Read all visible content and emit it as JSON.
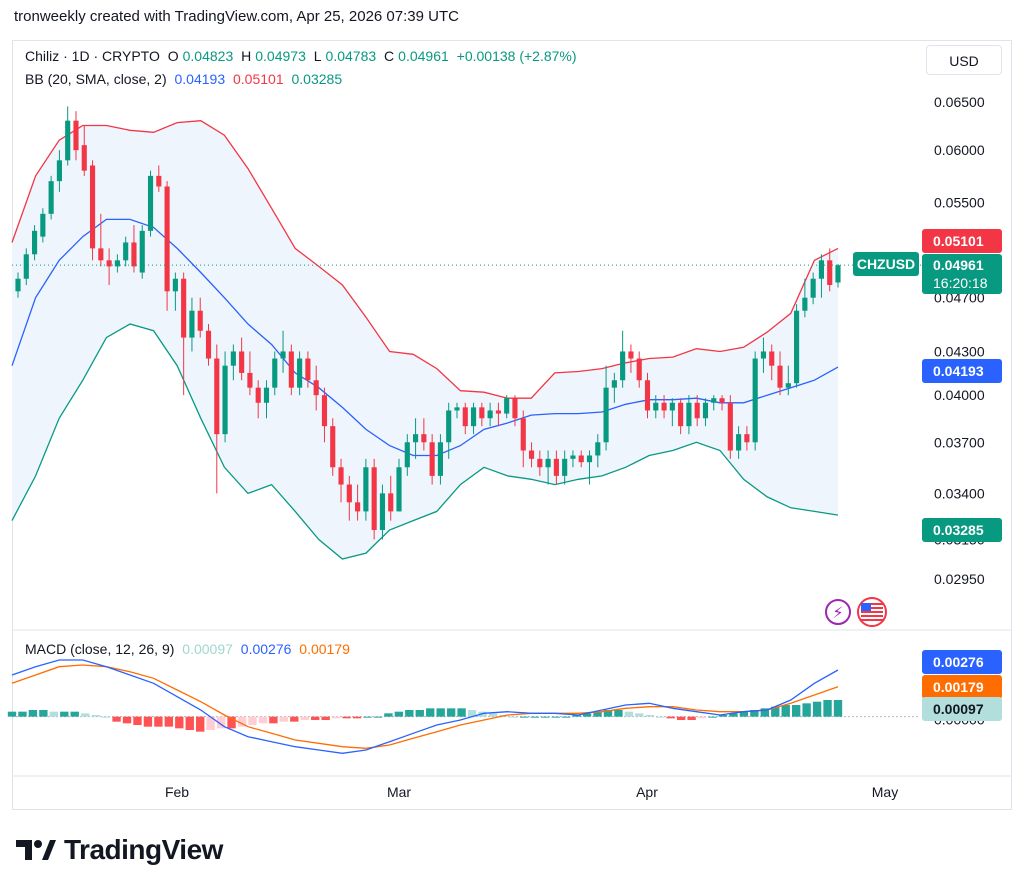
{
  "header": {
    "note": "tronweekly created with TradingView.com, Apr 25, 2026 07:39 UTC"
  },
  "legend": {
    "symbol": "Chiliz · 1D · CRYPTO",
    "o_label": "O",
    "o_value": "0.04823",
    "h_label": "H",
    "h_value": "0.04973",
    "l_label": "L",
    "l_value": "0.04783",
    "c_label": "C",
    "c_value": "0.04961",
    "change": "+0.00138 (+2.87%)"
  },
  "bb_legend": {
    "label": "BB (20, SMA, close, 2)",
    "basis": "0.04193",
    "upper": "0.05101",
    "lower": "0.03285"
  },
  "macd_legend": {
    "label": "MACD (close, 12, 26, 9)",
    "hist": "0.00097",
    "macd": "0.00276",
    "signal": "0.00179"
  },
  "currency_button": "USD",
  "price_ticks": [
    "0.06500",
    "0.06000",
    "0.05500",
    "0.04700",
    "0.04300",
    "0.04000",
    "0.03700",
    "0.03400",
    "0.03150",
    "0.02950"
  ],
  "macd_zero_tick": "0.00000",
  "time_ticks": [
    "Feb",
    "Mar",
    "Apr",
    "May"
  ],
  "badges": {
    "bb_upper": "0.05101",
    "symbol": "CHZUSD",
    "price": "0.04961",
    "countdown": "16:20:18",
    "bb_basis": "0.04193",
    "bb_lower": "0.03285",
    "macd": "0.00276",
    "signal": "0.00179",
    "hist": "0.00097"
  },
  "colors": {
    "up": "#089981",
    "down": "#f23645",
    "bb_basis": "#2962ff",
    "bb_upper": "#f23645",
    "bb_lower": "#089981",
    "bb_fill": "#eef5fc",
    "macd": "#2962ff",
    "signal": "#ff6d00",
    "hist_up_strong": "#26a69a",
    "hist_up_weak": "#b2dfdb",
    "hist_down_strong": "#ff5252",
    "hist_down_weak": "#ffcdd2"
  },
  "logo": {
    "text": "TradingView"
  },
  "chart_data": {
    "type": "candlestick",
    "symbol": "CHZUSD",
    "price_range": [
      0.0285,
      0.0665
    ],
    "x_ticks": [
      "Feb",
      "Mar",
      "Apr",
      "May"
    ],
    "candles": [
      [
        0.0475,
        0.049,
        0.047,
        0.0485
      ],
      [
        0.0485,
        0.051,
        0.048,
        0.0505
      ],
      [
        0.0505,
        0.053,
        0.05,
        0.0525
      ],
      [
        0.052,
        0.0545,
        0.0515,
        0.054
      ],
      [
        0.054,
        0.0575,
        0.0535,
        0.057
      ],
      [
        0.057,
        0.06,
        0.056,
        0.059
      ],
      [
        0.059,
        0.0645,
        0.0585,
        0.063
      ],
      [
        0.063,
        0.064,
        0.059,
        0.06
      ],
      [
        0.0605,
        0.0625,
        0.0575,
        0.058
      ],
      [
        0.0585,
        0.059,
        0.05,
        0.051
      ],
      [
        0.051,
        0.054,
        0.0495,
        0.05
      ],
      [
        0.05,
        0.051,
        0.048,
        0.0495
      ],
      [
        0.0495,
        0.0505,
        0.049,
        0.05
      ],
      [
        0.05,
        0.052,
        0.0495,
        0.0515
      ],
      [
        0.0515,
        0.053,
        0.049,
        0.0495
      ],
      [
        0.049,
        0.053,
        0.0485,
        0.0525
      ],
      [
        0.0525,
        0.058,
        0.052,
        0.0575
      ],
      [
        0.0575,
        0.0585,
        0.056,
        0.0565
      ],
      [
        0.0565,
        0.057,
        0.046,
        0.0475
      ],
      [
        0.0475,
        0.049,
        0.046,
        0.0485
      ],
      [
        0.0485,
        0.049,
        0.04,
        0.044
      ],
      [
        0.044,
        0.047,
        0.043,
        0.046
      ],
      [
        0.046,
        0.047,
        0.044,
        0.0445
      ],
      [
        0.0445,
        0.045,
        0.042,
        0.0425
      ],
      [
        0.0425,
        0.0435,
        0.034,
        0.0375
      ],
      [
        0.0375,
        0.043,
        0.037,
        0.042
      ],
      [
        0.042,
        0.0435,
        0.041,
        0.043
      ],
      [
        0.043,
        0.044,
        0.041,
        0.0415
      ],
      [
        0.0415,
        0.043,
        0.04,
        0.0405
      ],
      [
        0.0405,
        0.041,
        0.0385,
        0.0395
      ],
      [
        0.0395,
        0.041,
        0.0385,
        0.0405
      ],
      [
        0.0405,
        0.043,
        0.04,
        0.0425
      ],
      [
        0.0425,
        0.0445,
        0.0415,
        0.043
      ],
      [
        0.043,
        0.0435,
        0.04,
        0.0405
      ],
      [
        0.0405,
        0.043,
        0.04,
        0.0425
      ],
      [
        0.0425,
        0.043,
        0.0405,
        0.041
      ],
      [
        0.041,
        0.042,
        0.039,
        0.04
      ],
      [
        0.04,
        0.0405,
        0.037,
        0.038
      ],
      [
        0.038,
        0.0385,
        0.035,
        0.0355
      ],
      [
        0.0355,
        0.036,
        0.0335,
        0.0345
      ],
      [
        0.0345,
        0.035,
        0.0325,
        0.0335
      ],
      [
        0.0335,
        0.0345,
        0.0325,
        0.033
      ],
      [
        0.033,
        0.036,
        0.0325,
        0.0355
      ],
      [
        0.0355,
        0.036,
        0.0315,
        0.032
      ],
      [
        0.032,
        0.0345,
        0.0315,
        0.034
      ],
      [
        0.034,
        0.035,
        0.0325,
        0.033
      ],
      [
        0.033,
        0.036,
        0.033,
        0.0355
      ],
      [
        0.0355,
        0.0375,
        0.035,
        0.037
      ],
      [
        0.037,
        0.0385,
        0.036,
        0.0375
      ],
      [
        0.0375,
        0.0385,
        0.0365,
        0.037
      ],
      [
        0.037,
        0.0375,
        0.0345,
        0.035
      ],
      [
        0.035,
        0.0375,
        0.0345,
        0.037
      ],
      [
        0.037,
        0.0395,
        0.036,
        0.039
      ],
      [
        0.039,
        0.0395,
        0.0385,
        0.0392
      ],
      [
        0.0392,
        0.0395,
        0.0375,
        0.038
      ],
      [
        0.038,
        0.0395,
        0.0375,
        0.0392
      ],
      [
        0.0392,
        0.0395,
        0.038,
        0.0385
      ],
      [
        0.0385,
        0.0395,
        0.038,
        0.039
      ],
      [
        0.039,
        0.0395,
        0.038,
        0.0388
      ],
      [
        0.0388,
        0.04,
        0.0385,
        0.0398
      ],
      [
        0.0398,
        0.04,
        0.038,
        0.0385
      ],
      [
        0.0385,
        0.039,
        0.0355,
        0.0365
      ],
      [
        0.0365,
        0.037,
        0.0355,
        0.036
      ],
      [
        0.036,
        0.0365,
        0.035,
        0.0355
      ],
      [
        0.0355,
        0.0365,
        0.0345,
        0.036
      ],
      [
        0.036,
        0.0365,
        0.0345,
        0.035
      ],
      [
        0.035,
        0.0365,
        0.0345,
        0.036
      ],
      [
        0.036,
        0.0365,
        0.0355,
        0.0362
      ],
      [
        0.0362,
        0.0365,
        0.0355,
        0.0358
      ],
      [
        0.0358,
        0.0365,
        0.0345,
        0.0362
      ],
      [
        0.0362,
        0.0375,
        0.0355,
        0.037
      ],
      [
        0.037,
        0.042,
        0.0365,
        0.0405
      ],
      [
        0.0405,
        0.0415,
        0.0395,
        0.041
      ],
      [
        0.041,
        0.0445,
        0.0405,
        0.043
      ],
      [
        0.043,
        0.0435,
        0.0415,
        0.0425
      ],
      [
        0.0425,
        0.043,
        0.0405,
        0.041
      ],
      [
        0.041,
        0.0415,
        0.0385,
        0.039
      ],
      [
        0.039,
        0.04,
        0.0385,
        0.0395
      ],
      [
        0.0395,
        0.04,
        0.0385,
        0.039
      ],
      [
        0.039,
        0.0398,
        0.038,
        0.0395
      ],
      [
        0.0395,
        0.0398,
        0.0375,
        0.038
      ],
      [
        0.038,
        0.04,
        0.0375,
        0.0395
      ],
      [
        0.0395,
        0.04,
        0.038,
        0.0385
      ],
      [
        0.0385,
        0.0398,
        0.038,
        0.0395
      ],
      [
        0.0395,
        0.04,
        0.039,
        0.0398
      ],
      [
        0.0398,
        0.04,
        0.039,
        0.0395
      ],
      [
        0.0395,
        0.04,
        0.036,
        0.0365
      ],
      [
        0.0365,
        0.038,
        0.036,
        0.0375
      ],
      [
        0.0375,
        0.038,
        0.0365,
        0.037
      ],
      [
        0.037,
        0.043,
        0.0365,
        0.0425
      ],
      [
        0.0425,
        0.044,
        0.0415,
        0.043
      ],
      [
        0.043,
        0.0435,
        0.041,
        0.042
      ],
      [
        0.042,
        0.043,
        0.04,
        0.0405
      ],
      [
        0.0405,
        0.042,
        0.04,
        0.0408
      ],
      [
        0.0408,
        0.0465,
        0.0405,
        0.046
      ],
      [
        0.046,
        0.0485,
        0.0455,
        0.047
      ],
      [
        0.047,
        0.049,
        0.0465,
        0.0485
      ],
      [
        0.0485,
        0.0505,
        0.047,
        0.05
      ],
      [
        0.05,
        0.051,
        0.0475,
        0.048
      ],
      [
        0.0482,
        0.0497,
        0.0478,
        0.0496
      ]
    ],
    "bb_upper": [
      0.0515,
      0.0575,
      0.061,
      0.0625,
      0.0625,
      0.062,
      0.0618,
      0.0628,
      0.063,
      0.0615,
      0.0582,
      0.0545,
      0.051,
      0.0495,
      0.048,
      0.0455,
      0.043,
      0.0428,
      0.0418,
      0.0403,
      0.0402,
      0.0398,
      0.0398,
      0.0415,
      0.0416,
      0.0418,
      0.0422,
      0.0425,
      0.0426,
      0.0432,
      0.043,
      0.0433,
      0.0444,
      0.0458,
      0.05,
      0.051
    ],
    "bb_basis": [
      0.042,
      0.047,
      0.05,
      0.052,
      0.0535,
      0.0535,
      0.0528,
      0.051,
      0.049,
      0.047,
      0.045,
      0.0435,
      0.0415,
      0.0405,
      0.0392,
      0.0378,
      0.0368,
      0.0362,
      0.0362,
      0.0368,
      0.0378,
      0.0382,
      0.0387,
      0.0388,
      0.0388,
      0.0389,
      0.0394,
      0.0397,
      0.0397,
      0.0398,
      0.0395,
      0.0395,
      0.04,
      0.0405,
      0.041,
      0.0419
    ],
    "bb_lower": [
      0.0325,
      0.035,
      0.0385,
      0.041,
      0.044,
      0.045,
      0.0445,
      0.042,
      0.0385,
      0.0355,
      0.034,
      0.0345,
      0.033,
      0.0315,
      0.0305,
      0.0308,
      0.032,
      0.0325,
      0.033,
      0.0345,
      0.0355,
      0.035,
      0.0348,
      0.0345,
      0.0348,
      0.035,
      0.0355,
      0.0362,
      0.0365,
      0.037,
      0.0365,
      0.0348,
      0.0338,
      0.0332,
      0.033,
      0.0328
    ],
    "macd_line": [
      0.0025,
      0.003,
      0.0034,
      0.0034,
      0.003,
      0.0025,
      0.002,
      0.0012,
      0.0004,
      -0.0006,
      -0.0012,
      -0.0015,
      -0.0018,
      -0.002,
      -0.0022,
      -0.002,
      -0.0015,
      -0.001,
      -0.0005,
      -0.0002,
      0.0002,
      0.0003,
      0.0002,
      0.0002,
      0.0001,
      0.0004,
      0.0007,
      0.0008,
      0.0005,
      0.0003,
      0.0001,
      0.0003,
      0.0004,
      0.001,
      0.002,
      0.0028
    ],
    "signal_line": [
      0.002,
      0.0025,
      0.003,
      0.0031,
      0.003,
      0.0027,
      0.0023,
      0.0016,
      0.0009,
      0.0001,
      -0.0006,
      -0.001,
      -0.0014,
      -0.0016,
      -0.0018,
      -0.0019,
      -0.0017,
      -0.0013,
      -0.0009,
      -0.0005,
      -0.0002,
      0.0001,
      0.0002,
      0.0002,
      0.0002,
      0.0003,
      0.0005,
      0.0006,
      0.0006,
      0.0004,
      0.0003,
      0.0003,
      0.0004,
      0.0008,
      0.0013,
      0.0018
    ],
    "histogram": [
      0.0003,
      0.0003,
      0.0004,
      0.0004,
      0.0003,
      0.0003,
      0.0003,
      0.0002,
      0.0001,
      0.0,
      -0.0003,
      -0.0004,
      -0.0005,
      -0.0006,
      -0.0006,
      -0.0006,
      -0.0007,
      -0.0008,
      -0.0009,
      -0.0008,
      -0.0007,
      -0.0007,
      -0.0006,
      -0.0005,
      -0.0004,
      -0.0004,
      -0.0003,
      -0.0003,
      -0.0002,
      -0.0002,
      -0.0002,
      -0.0001,
      -0.0001,
      -0.0001,
      0.0,
      0.0,
      0.0002,
      0.0003,
      0.0004,
      0.0004,
      0.0005,
      0.0005,
      0.0005,
      0.0005,
      0.0004,
      0.0003,
      0.0002,
      0.0001,
      0.0,
      0.0,
      0.0,
      0.0,
      0.0,
      0.0,
      0.0001,
      0.0002,
      0.0003,
      0.0004,
      0.0004,
      0.0003,
      0.0002,
      0.0001,
      0.0,
      -0.0001,
      -0.0002,
      -0.0002,
      -0.0001,
      0.0,
      0.0001,
      0.0002,
      0.0003,
      0.0004,
      0.0005,
      0.0006,
      0.0007,
      0.0007,
      0.0008,
      0.0009,
      0.001,
      0.001
    ],
    "macd_range": [
      -0.0026,
      0.004
    ]
  }
}
